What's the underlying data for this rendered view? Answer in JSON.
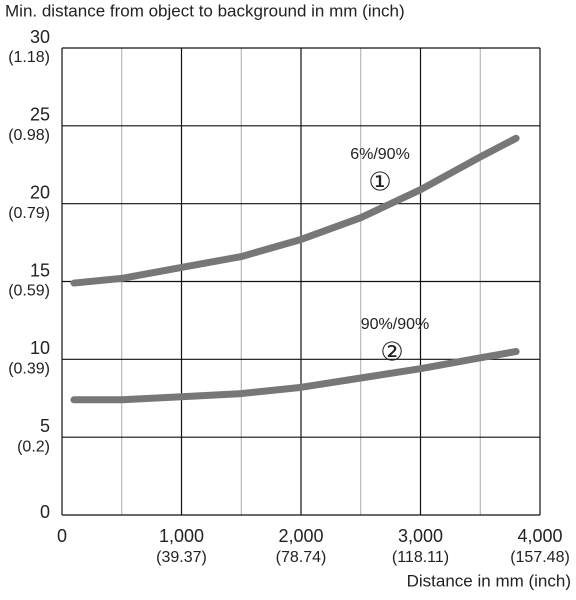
{
  "chart_data": {
    "type": "line",
    "ylabel": "Min. distance from object to background in mm (inch)",
    "xlabel": "Distance in mm (inch)",
    "xlim": [
      0,
      4000
    ],
    "ylim": [
      0,
      30
    ],
    "xticks": [
      0,
      {
        "value": 1000,
        "label": "1,000"
      },
      {
        "value": 2000,
        "label": "2,000"
      },
      {
        "value": 3000,
        "label": "3,000"
      },
      {
        "value": 4000,
        "label": "4,000"
      }
    ],
    "xtick_inch_labels": [
      null,
      "(39.37)",
      "(78.74)",
      "(118.11)",
      "(157.48)"
    ],
    "xminor": [
      500,
      1500,
      2500,
      3500
    ],
    "yticks": [
      0,
      5,
      10,
      15,
      20,
      25,
      30
    ],
    "ytick_inch_labels": [
      null,
      "(0.2)",
      "(0.39)",
      "(0.59)",
      "(0.79)",
      "(0.98)",
      "(1.18)"
    ],
    "grid": true,
    "x": [
      100,
      500,
      1000,
      1500,
      2000,
      2500,
      3000,
      3500,
      3800
    ],
    "series": [
      {
        "name": "6%/90%",
        "marker": "①",
        "color": "#777777",
        "values": [
          14.9,
          15.2,
          15.9,
          16.6,
          17.7,
          19.1,
          20.9,
          23.0,
          24.2
        ]
      },
      {
        "name": "90%/90%",
        "marker": "②",
        "color": "#777777",
        "values": [
          7.4,
          7.4,
          7.6,
          7.8,
          8.2,
          8.8,
          9.4,
          10.1,
          10.5
        ]
      }
    ]
  }
}
